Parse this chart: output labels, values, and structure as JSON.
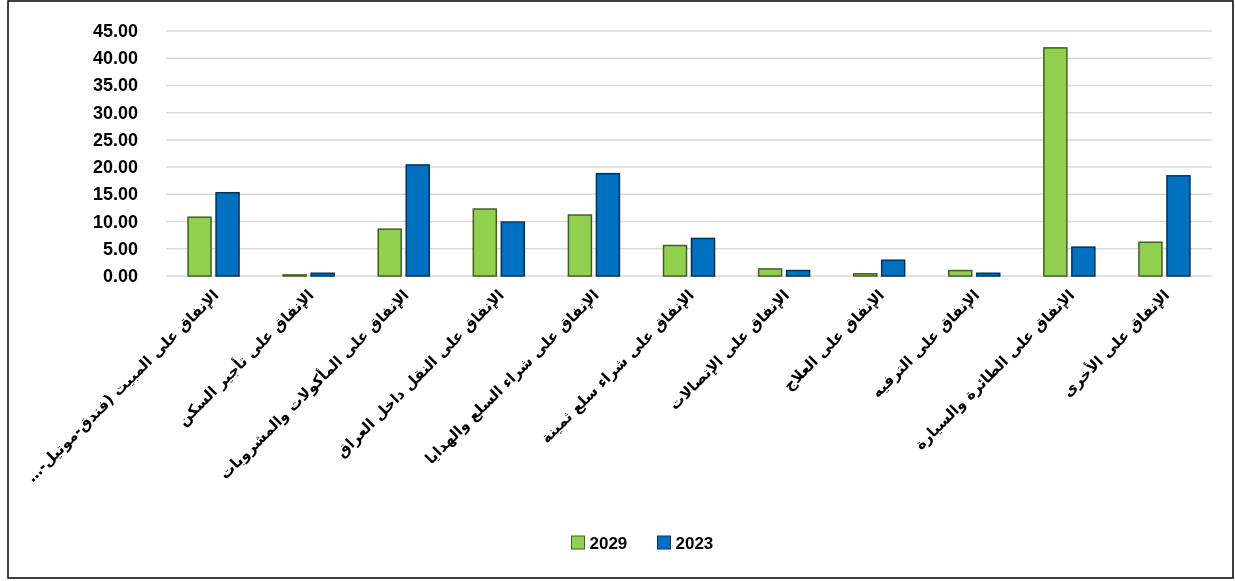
{
  "chart_data": {
    "type": "bar",
    "categories": [
      "الإنفاق على المبيت (فندق-موتيل-…",
      "الإنفاق على تأجير السكن",
      "الإنفاق على المأكولات والمشروبات",
      "الإنفاق على النقل داخل العراق",
      "الإنفاق على شراء السلع والهدايا",
      "الإنفاق على شراء سلع ثمينة",
      "الإنفاق على الإتصالات",
      "الإنفاق على العلاج",
      "الإنفاق على الترفيه",
      "الإنفاق على الطائرة والسيارة",
      "الإنفاق على الأخرى"
    ],
    "series": [
      {
        "name": "2029",
        "color": "#92d050",
        "values": [
          10.8,
          0.2,
          8.6,
          12.3,
          11.2,
          5.6,
          1.3,
          0.4,
          1.0,
          41.9,
          6.2
        ]
      },
      {
        "name": "2023",
        "color": "#0070c0",
        "values": [
          15.3,
          0.5,
          20.4,
          9.9,
          18.8,
          6.9,
          1.0,
          2.9,
          0.5,
          5.3,
          18.4
        ]
      }
    ],
    "ylim": [
      0,
      45
    ],
    "yticks": [
      {
        "value": 0,
        "label": "0.00"
      },
      {
        "value": 5,
        "label": "5.00"
      },
      {
        "value": 10,
        "label": "10.00"
      },
      {
        "value": 15,
        "label": "15.00"
      },
      {
        "value": 20,
        "label": "20.00"
      },
      {
        "value": 25,
        "label": "25.00"
      },
      {
        "value": 30,
        "label": "30.00"
      },
      {
        "value": 35,
        "label": "35.00"
      },
      {
        "value": 40,
        "label": "40.00"
      },
      {
        "value": 45,
        "label": "45.00"
      }
    ],
    "grid": "y",
    "legend": "bottom"
  }
}
